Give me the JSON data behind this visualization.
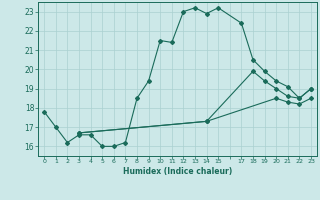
{
  "line1": {
    "x": [
      0,
      1,
      2,
      3,
      4,
      5,
      6,
      7,
      8,
      9,
      10,
      11,
      12,
      13,
      14,
      15,
      17,
      18,
      19,
      20,
      21,
      22,
      23
    ],
    "y": [
      17.8,
      17.0,
      16.2,
      16.6,
      16.6,
      16.0,
      16.0,
      16.2,
      18.5,
      19.4,
      21.5,
      21.4,
      23.0,
      23.2,
      22.9,
      23.2,
      22.4,
      20.5,
      19.9,
      19.4,
      19.1,
      18.5,
      19.0
    ]
  },
  "line2": {
    "x": [
      3,
      14,
      18,
      19,
      20,
      21,
      22,
      23
    ],
    "y": [
      16.7,
      17.3,
      19.9,
      19.4,
      19.0,
      18.6,
      18.5,
      19.0
    ]
  },
  "line3": {
    "x": [
      3,
      14,
      20,
      21,
      22,
      23
    ],
    "y": [
      16.7,
      17.3,
      18.5,
      18.3,
      18.2,
      18.5
    ]
  },
  "color": "#1a6b5a",
  "bg_color": "#cce8e8",
  "grid_color": "#aad0d0",
  "xlabel": "Humidex (Indice chaleur)",
  "xlim": [
    -0.5,
    23.5
  ],
  "ylim": [
    15.5,
    23.5
  ],
  "yticks": [
    16,
    17,
    18,
    19,
    20,
    21,
    22,
    23
  ],
  "xtick_positions": [
    0,
    1,
    2,
    3,
    4,
    5,
    6,
    7,
    8,
    9,
    10,
    11,
    12,
    13,
    14,
    15,
    16,
    17,
    18,
    19,
    20,
    21,
    22,
    23
  ],
  "xtick_labels": [
    "0",
    "1",
    "2",
    "3",
    "4",
    "5",
    "6",
    "7",
    "8",
    "9",
    "10",
    "11",
    "12",
    "13",
    "14",
    "15",
    "",
    "17",
    "18",
    "19",
    "20",
    "21",
    "22",
    "23"
  ]
}
